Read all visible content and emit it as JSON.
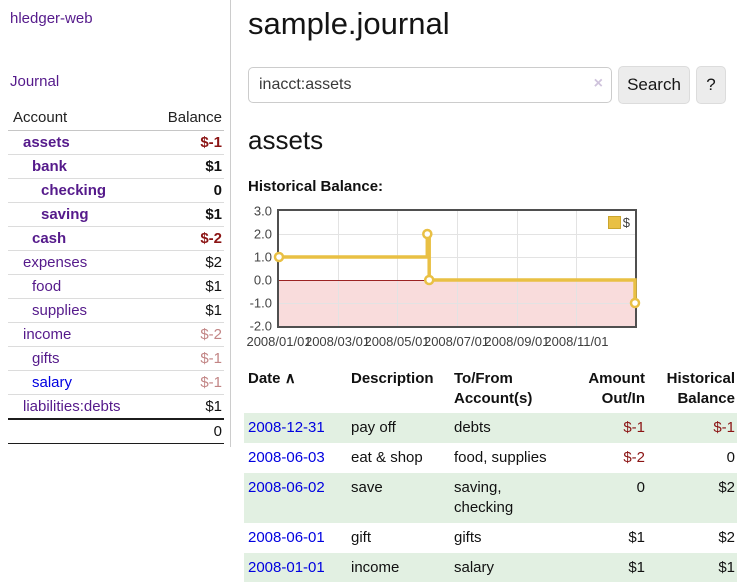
{
  "app": {
    "brand": "hledger-web",
    "nav_journal": "Journal"
  },
  "colors": {
    "link_visited_purple": "#551a8b",
    "link_unvisited_blue": "#0000e0",
    "negative_dark_red": "#8b1414",
    "negative_light_rose": "#c28585",
    "row_stripe_green": "#e2f0e2",
    "chart_series_gold": "#e9c044",
    "chart_negative_zone_pink": "#f9dcdc",
    "chart_zero_line_red": "#9c2323"
  },
  "sidebar": {
    "headers": {
      "account": "Account",
      "balance": "Balance"
    },
    "accounts": [
      {
        "name": "assets",
        "balance": "$-1",
        "level": 0,
        "bold": true,
        "balance_style": "neg-dark",
        "link": "visited"
      },
      {
        "name": "bank",
        "balance": "$1",
        "level": 1,
        "bold": true,
        "balance_style": "pos",
        "link": "visited"
      },
      {
        "name": "checking",
        "balance": "0",
        "level": 2,
        "bold": true,
        "balance_style": "pos",
        "link": "visited"
      },
      {
        "name": "saving",
        "balance": "$1",
        "level": 2,
        "bold": true,
        "balance_style": "pos",
        "link": "visited"
      },
      {
        "name": "cash",
        "balance": "$-2",
        "level": 1,
        "bold": true,
        "balance_style": "neg-dark",
        "link": "visited"
      },
      {
        "name": "expenses",
        "balance": "$2",
        "level": 0,
        "bold": false,
        "balance_style": "pos",
        "link": "visited"
      },
      {
        "name": "food",
        "balance": "$1",
        "level": 1,
        "bold": false,
        "balance_style": "pos",
        "link": "visited"
      },
      {
        "name": "supplies",
        "balance": "$1",
        "level": 1,
        "bold": false,
        "balance_style": "pos",
        "link": "visited"
      },
      {
        "name": "income",
        "balance": "$-2",
        "level": 0,
        "bold": false,
        "balance_style": "neg-light",
        "link": "visited"
      },
      {
        "name": "gifts",
        "balance": "$-1",
        "level": 1,
        "bold": false,
        "balance_style": "neg-light",
        "link": "visited"
      },
      {
        "name": "salary",
        "balance": "$-1",
        "level": 1,
        "bold": false,
        "balance_style": "neg-light",
        "link": "unvisited"
      },
      {
        "name": "liabilities:debts",
        "balance": "$1",
        "level": 0,
        "bold": false,
        "balance_style": "pos",
        "link": "visited"
      }
    ],
    "total": "0"
  },
  "header": {
    "title": "sample.journal"
  },
  "search": {
    "value": "inacct:assets",
    "clear_icon": "×",
    "button_label": "Search",
    "help_label": "?"
  },
  "account_page": {
    "heading": "assets",
    "chart_label": "Historical Balance:"
  },
  "chart_data": {
    "type": "line",
    "steps": true,
    "title": "Historical Balance",
    "legend": [
      {
        "label": "$",
        "color": "#e9c044"
      }
    ],
    "legend_position": "top-right",
    "x_range": [
      "2008-01-01",
      "2008-12-31"
    ],
    "ylim": [
      -2.0,
      3.0
    ],
    "series": [
      {
        "name": "$",
        "color": "#e9c044",
        "points": [
          {
            "date": "2008-01-01",
            "value": 1
          },
          {
            "date": "2008-06-01",
            "value": 2
          },
          {
            "date": "2008-06-03",
            "value": 0
          },
          {
            "date": "2008-12-31",
            "value": -1
          }
        ]
      }
    ],
    "x_ticks": [
      {
        "date": "2008-01-01",
        "label": "2008/01/01"
      },
      {
        "date": "2008-03-01",
        "label": "2008/03/01"
      },
      {
        "date": "2008-05-01",
        "label": "2008/05/01"
      },
      {
        "date": "2008-07-01",
        "label": "2008/07/01"
      },
      {
        "date": "2008-09-01",
        "label": "2008/09/01"
      },
      {
        "date": "2008-11-01",
        "label": "2008/11/01"
      }
    ],
    "y_ticks": [
      "3.0",
      "2.0",
      "1.0",
      "0.0",
      "-1.0",
      "-2.0"
    ],
    "grid": true,
    "negative_zone_shaded": true
  },
  "register": {
    "columns": {
      "date": "Date",
      "description": "Description",
      "accounts": "To/From Account(s)",
      "amount": "Amount Out/In",
      "balance": "Historical Balance"
    },
    "sort_icon": "∧",
    "rows": [
      {
        "date": "2008-12-31",
        "description": "pay off",
        "accounts": "debts",
        "amount": "$-1",
        "amount_neg": true,
        "balance": "$-1",
        "balance_neg": true
      },
      {
        "date": "2008-06-03",
        "description": "eat & shop",
        "accounts": "food, supplies",
        "amount": "$-2",
        "amount_neg": true,
        "balance": "0",
        "balance_neg": false
      },
      {
        "date": "2008-06-02",
        "description": "save",
        "accounts": "saving, checking",
        "amount": "0",
        "amount_neg": false,
        "balance": "$2",
        "balance_neg": false
      },
      {
        "date": "2008-06-01",
        "description": "gift",
        "accounts": "gifts",
        "amount": "$1",
        "amount_neg": false,
        "balance": "$2",
        "balance_neg": false
      },
      {
        "date": "2008-01-01",
        "description": "income",
        "accounts": "salary",
        "amount": "$1",
        "amount_neg": false,
        "balance": "$1",
        "balance_neg": false
      }
    ]
  }
}
